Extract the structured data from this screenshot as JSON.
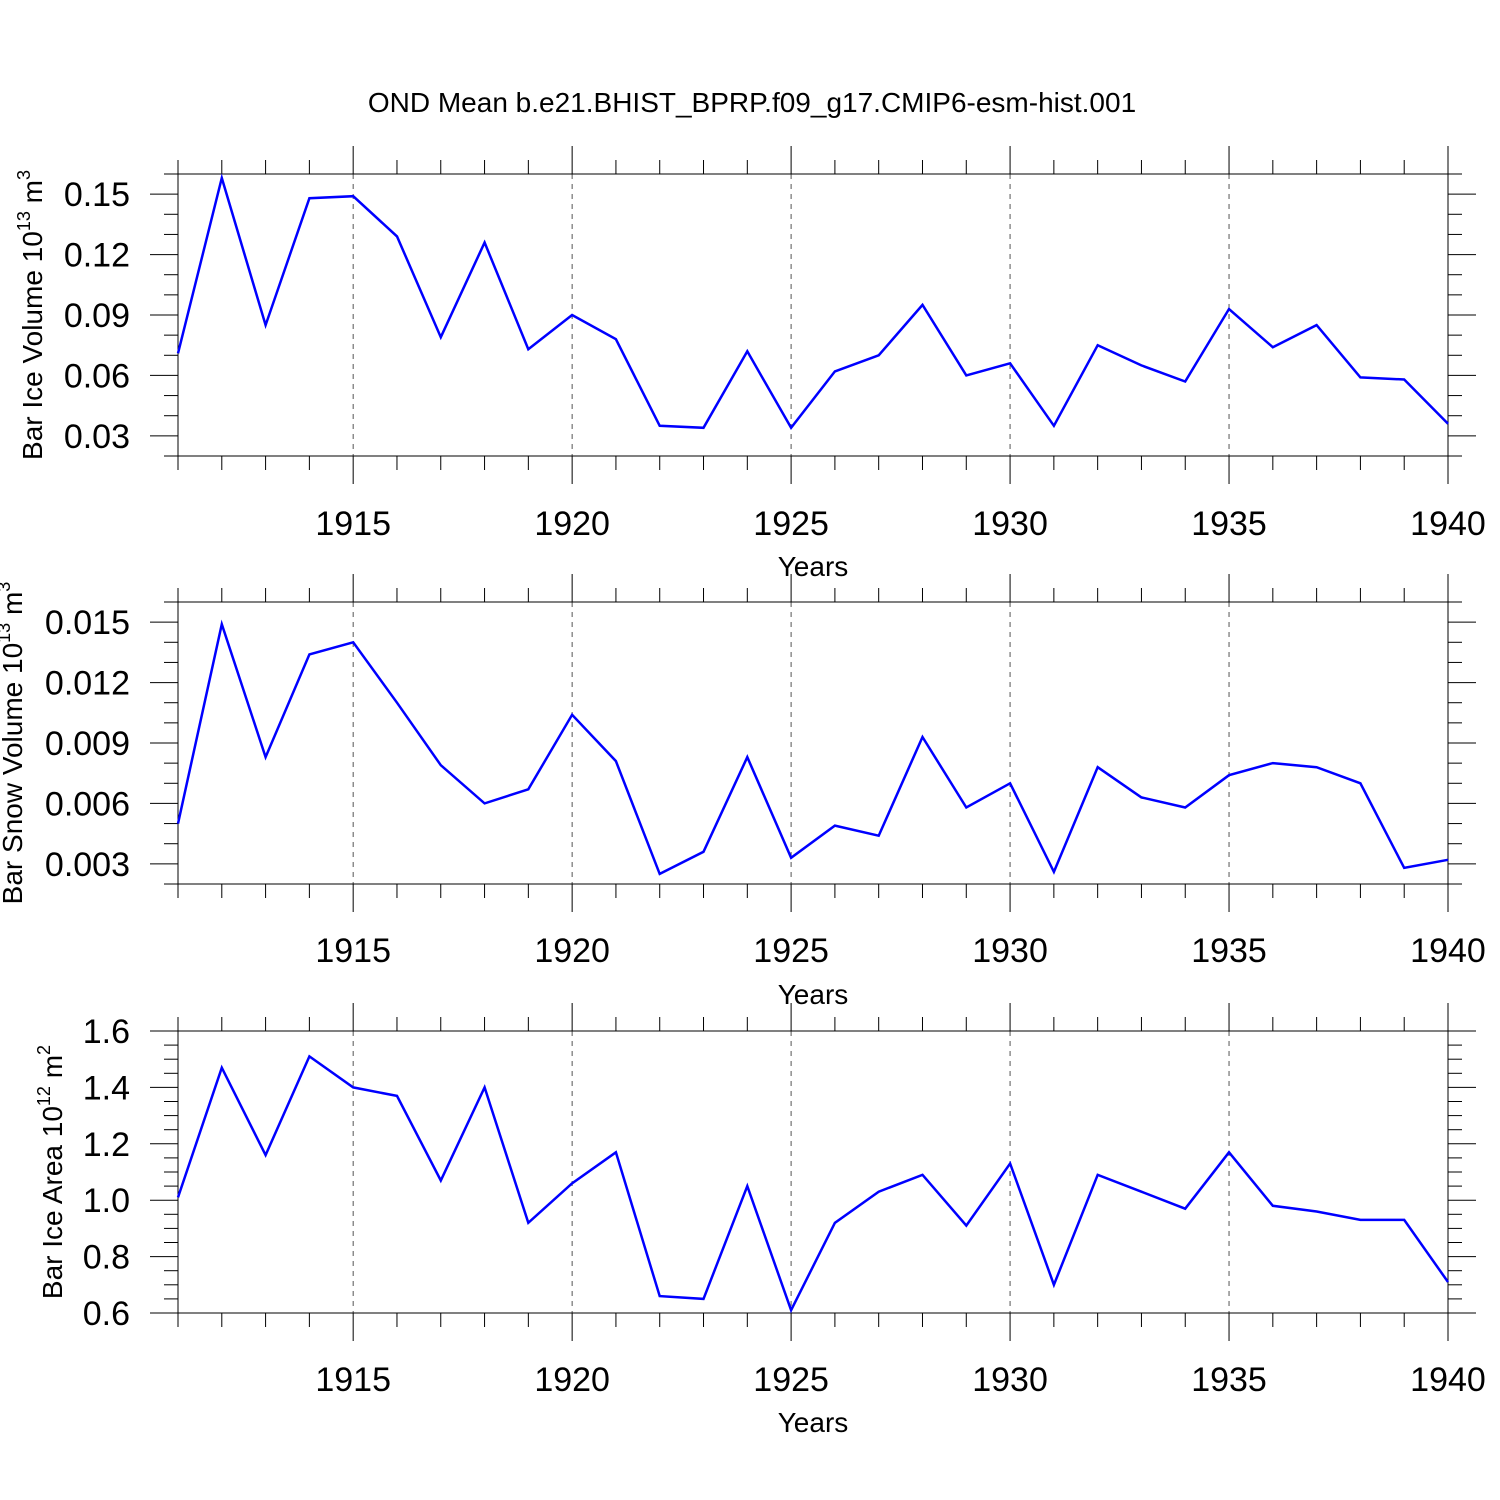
{
  "title": "OND Mean b.e21.BHIST_BPRP.f09_g17.CMIP6-esm-hist.001",
  "chart_data": [
    {
      "type": "line",
      "ylabel_main": "Bar Ice Volume 10",
      "ylabel_exp": "13",
      "ylabel_unit": " m",
      "ylabel_unit_exp": "3",
      "xlabel": "Years",
      "xlim": [
        1911,
        1940
      ],
      "ylim": [
        0.02,
        0.16
      ],
      "yticks": [
        0.03,
        0.06,
        0.09,
        0.12,
        0.15
      ],
      "ytick_labels": [
        "0.03",
        "0.06",
        "0.09",
        "0.12",
        "0.15"
      ],
      "xticks": [
        1915,
        1920,
        1925,
        1930,
        1935,
        1940
      ],
      "xtick_labels": [
        "1915",
        "1920",
        "1925",
        "1930",
        "1935",
        "1940"
      ],
      "grid": "dashed vertical at major x ticks",
      "color": "#0000ff",
      "x": [
        1911,
        1912,
        1913,
        1914,
        1915,
        1916,
        1917,
        1918,
        1919,
        1920,
        1921,
        1922,
        1923,
        1924,
        1925,
        1926,
        1927,
        1928,
        1929,
        1930,
        1931,
        1932,
        1933,
        1934,
        1935,
        1936,
        1937,
        1938,
        1939,
        1940
      ],
      "y": [
        0.071,
        0.158,
        0.085,
        0.148,
        0.149,
        0.129,
        0.079,
        0.126,
        0.073,
        0.09,
        0.078,
        0.035,
        0.034,
        0.072,
        0.034,
        0.062,
        0.07,
        0.095,
        0.06,
        0.066,
        0.035,
        0.075,
        0.065,
        0.057,
        0.093,
        0.074,
        0.085,
        0.059,
        0.058,
        0.036
      ]
    },
    {
      "type": "line",
      "ylabel_main": "Bar Snow Volume 10",
      "ylabel_exp": "13",
      "ylabel_unit": " m",
      "ylabel_unit_exp": "3",
      "xlabel": "Years",
      "xlim": [
        1911,
        1940
      ],
      "ylim": [
        0.002,
        0.016
      ],
      "yticks": [
        0.003,
        0.006,
        0.009,
        0.012,
        0.015
      ],
      "ytick_labels": [
        "0.003",
        "0.006",
        "0.009",
        "0.012",
        "0.015"
      ],
      "xticks": [
        1915,
        1920,
        1925,
        1930,
        1935,
        1940
      ],
      "xtick_labels": [
        "1915",
        "1920",
        "1925",
        "1930",
        "1935",
        "1940"
      ],
      "grid": "dashed vertical at major x ticks",
      "color": "#0000ff",
      "x": [
        1911,
        1912,
        1913,
        1914,
        1915,
        1916,
        1917,
        1918,
        1919,
        1920,
        1921,
        1922,
        1923,
        1924,
        1925,
        1926,
        1927,
        1928,
        1929,
        1930,
        1931,
        1932,
        1933,
        1934,
        1935,
        1936,
        1937,
        1938,
        1939,
        1940
      ],
      "y": [
        0.005,
        0.0149,
        0.0083,
        0.0134,
        0.014,
        0.011,
        0.0079,
        0.006,
        0.0067,
        0.0104,
        0.0081,
        0.0025,
        0.0036,
        0.0083,
        0.0033,
        0.0049,
        0.0044,
        0.0093,
        0.0058,
        0.007,
        0.0026,
        0.0078,
        0.0063,
        0.0058,
        0.0074,
        0.008,
        0.0078,
        0.007,
        0.0028,
        0.0032
      ]
    },
    {
      "type": "line",
      "ylabel_main": "Bar Ice Area 10",
      "ylabel_exp": "12",
      "ylabel_unit": " m",
      "ylabel_unit_exp": "2",
      "xlabel": "Years",
      "xlim": [
        1911,
        1940
      ],
      "ylim": [
        0.6,
        1.6
      ],
      "yticks": [
        0.6,
        0.8,
        1.0,
        1.2,
        1.4,
        1.6
      ],
      "ytick_labels": [
        "0.6",
        "0.8",
        "1.0",
        "1.2",
        "1.4",
        "1.6"
      ],
      "xticks": [
        1915,
        1920,
        1925,
        1930,
        1935,
        1940
      ],
      "xtick_labels": [
        "1915",
        "1920",
        "1925",
        "1930",
        "1935",
        "1940"
      ],
      "grid": "dashed vertical at major x ticks",
      "color": "#0000ff",
      "x": [
        1911,
        1912,
        1913,
        1914,
        1915,
        1916,
        1917,
        1918,
        1919,
        1920,
        1921,
        1922,
        1923,
        1924,
        1925,
        1926,
        1927,
        1928,
        1929,
        1930,
        1931,
        1932,
        1933,
        1934,
        1935,
        1936,
        1937,
        1938,
        1939,
        1940
      ],
      "y": [
        1.01,
        1.47,
        1.16,
        1.51,
        1.4,
        1.37,
        1.07,
        1.4,
        0.92,
        1.06,
        1.17,
        0.66,
        0.65,
        1.05,
        0.61,
        0.92,
        1.03,
        1.09,
        0.91,
        1.13,
        0.7,
        1.09,
        1.03,
        0.97,
        1.17,
        0.98,
        0.96,
        0.93,
        0.93,
        0.71
      ]
    }
  ]
}
